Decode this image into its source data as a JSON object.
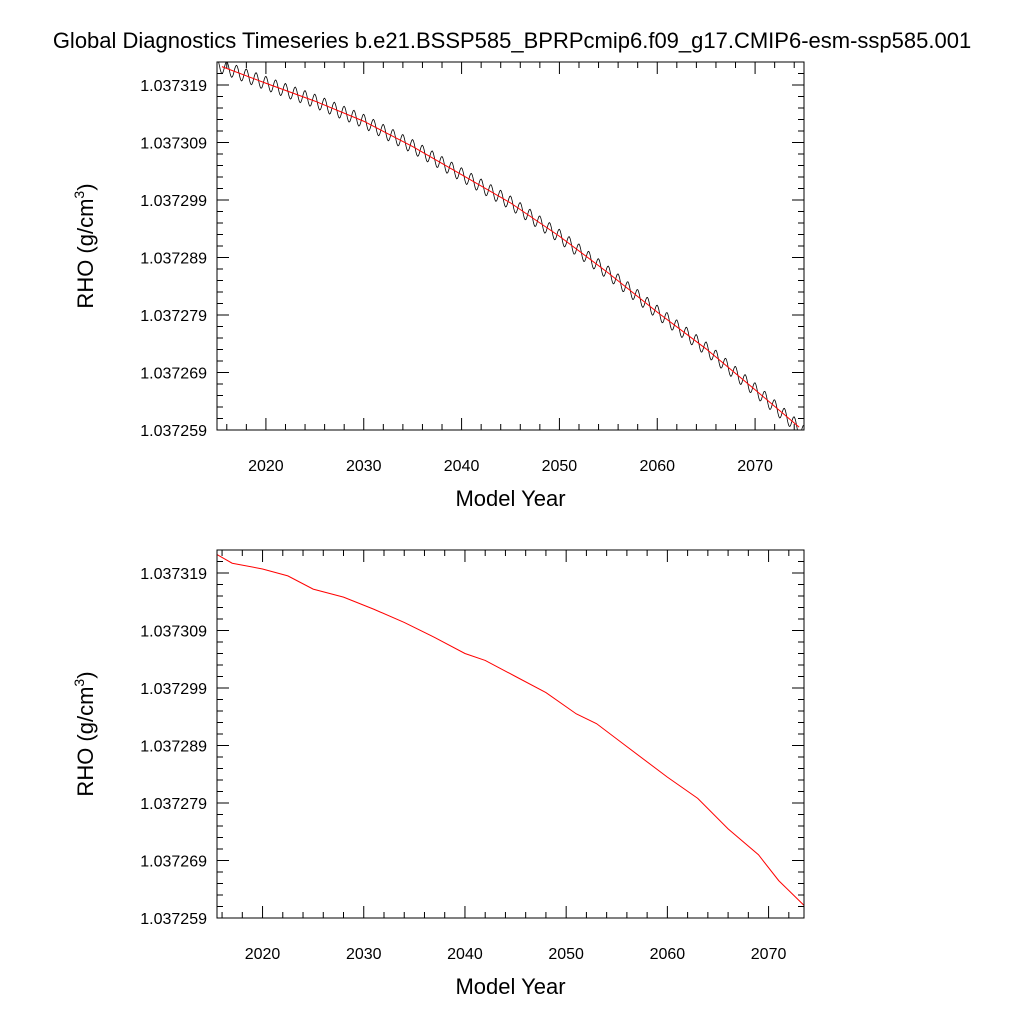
{
  "figure": {
    "title": "Global Diagnostics Timeseries b.e21.BSSP585_BPRPcmip6.f09_g17.CMIP6-esm-ssp585.001"
  },
  "colors": {
    "monthly": "#000000",
    "annual": "#ff0000"
  },
  "chart_data": [
    {
      "type": "line",
      "xlabel": "Model Year",
      "ylabel": "RHO (g/cm",
      "ylabel_superscript": "3",
      "ylabel_suffix": ")",
      "xlim": [
        2015,
        2075
      ],
      "ylim": [
        1.037259,
        1.037323
      ],
      "xticks": [
        2020,
        2030,
        2040,
        2050,
        2060,
        2070
      ],
      "xtick_labels": [
        "2020",
        "2030",
        "2040",
        "2050",
        "2060",
        "2070"
      ],
      "yticks": [
        1.037259,
        1.037269,
        1.037279,
        1.037289,
        1.037299,
        1.037309,
        1.037319
      ],
      "ytick_labels": [
        "1.037259",
        "1.037269",
        "1.037279",
        "1.037289",
        "1.037299",
        "1.037309",
        "1.037319"
      ],
      "series": [
        {
          "style": "monthly",
          "color": "#000000",
          "seasonal_amplitude": 1.2e-06,
          "x": [
            2015.0,
            2020,
            2025,
            2030,
            2035,
            2040,
            2045,
            2050,
            2055,
            2060,
            2065,
            2070,
            2075.0
          ],
          "y": [
            1.0373225,
            1.0373193,
            1.0373162,
            1.0373127,
            1.0373083,
            1.0373034,
            1.0372985,
            1.0372927,
            1.0372863,
            1.0372795,
            1.0372731,
            1.037266,
            1.0372586
          ]
        },
        {
          "style": "annual",
          "color": "#ff0000",
          "x": [
            2015.5,
            2020,
            2025,
            2030,
            2035,
            2040,
            2045,
            2050,
            2055,
            2060,
            2065,
            2070,
            2074.5
          ],
          "y": [
            1.0373222,
            1.0373193,
            1.0373162,
            1.0373127,
            1.0373083,
            1.0373034,
            1.0372985,
            1.0372927,
            1.0372863,
            1.0372795,
            1.0372731,
            1.037266,
            1.0372595
          ]
        }
      ]
    },
    {
      "type": "line",
      "xlabel": "Model Year",
      "ylabel": "RHO (g/cm",
      "ylabel_superscript": "3",
      "ylabel_suffix": ")",
      "xlim": [
        2015.5,
        2073.5
      ],
      "ylim": [
        1.037259,
        1.037323
      ],
      "xticks": [
        2020,
        2030,
        2040,
        2050,
        2060,
        2070
      ],
      "xtick_labels": [
        "2020",
        "2030",
        "2040",
        "2050",
        "2060",
        "2070"
      ],
      "yticks": [
        1.037259,
        1.037269,
        1.037279,
        1.037289,
        1.037299,
        1.037309,
        1.037319
      ],
      "ytick_labels": [
        "1.037259",
        "1.037269",
        "1.037279",
        "1.037289",
        "1.037299",
        "1.037309",
        "1.037319"
      ],
      "series": [
        {
          "style": "annual",
          "color": "#ff0000",
          "x": [
            2015.5,
            2017,
            2020,
            2022.5,
            2025,
            2028,
            2031,
            2034,
            2037,
            2040,
            2042,
            2045,
            2048,
            2051,
            2053,
            2056,
            2060,
            2063,
            2066,
            2069,
            2071,
            2073.5
          ],
          "y": [
            1.0373222,
            1.0373207,
            1.0373197,
            1.0373185,
            1.0373162,
            1.0373148,
            1.0373127,
            1.0373104,
            1.0373078,
            1.037305,
            1.0373038,
            1.037301,
            1.0372982,
            1.0372945,
            1.0372928,
            1.0372888,
            1.0372835,
            1.0372798,
            1.0372745,
            1.03727,
            1.0372655,
            1.0372612
          ]
        }
      ]
    }
  ]
}
